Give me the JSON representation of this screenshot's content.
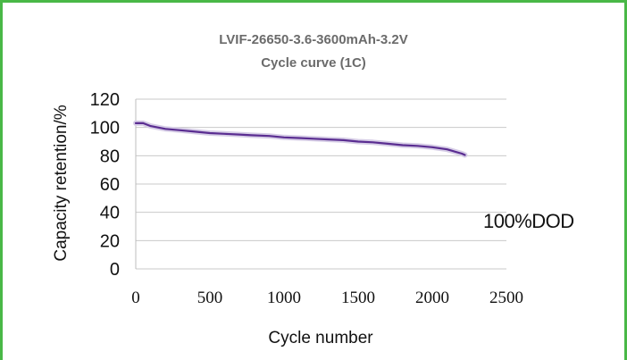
{
  "chart_data": {
    "type": "line",
    "title": "LVIF-26650-3.6-3600mAh-3.2V",
    "subtitle": "Cycle curve (1C)",
    "xlabel": "Cycle number",
    "ylabel": "Capacity retention/%",
    "xlim": [
      0,
      2500
    ],
    "ylim": [
      0,
      120
    ],
    "xticks": [
      0,
      500,
      1000,
      1500,
      2000,
      2500
    ],
    "yticks": [
      0,
      20,
      40,
      60,
      80,
      100,
      120
    ],
    "grid": "horizontal",
    "annotation": "100%DOD",
    "series": [
      {
        "color": "#5a2d91",
        "x": [
          0,
          50,
          100,
          200,
          300,
          400,
          500,
          600,
          700,
          780,
          900,
          1000,
          1100,
          1200,
          1300,
          1400,
          1500,
          1600,
          1700,
          1800,
          1900,
          2000,
          2100,
          2200,
          2220
        ],
        "y": [
          103,
          103,
          101,
          99,
          98,
          97,
          96,
          95.5,
          95,
          94.5,
          94,
          93,
          92.5,
          92,
          91.5,
          91,
          90,
          89.5,
          88.5,
          87.5,
          87,
          86,
          84.5,
          81.5,
          80.5
        ]
      }
    ]
  }
}
